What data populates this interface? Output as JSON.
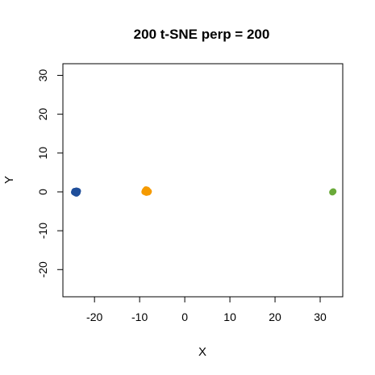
{
  "chart_data": {
    "type": "scatter",
    "title": "200 t-SNE perp = 200",
    "xlabel": "X",
    "ylabel": "Y",
    "xlim": [
      -27,
      35
    ],
    "ylim": [
      -27,
      33
    ],
    "xticks": [
      -20,
      -10,
      0,
      10,
      20,
      30
    ],
    "yticks": [
      -20,
      -10,
      0,
      10,
      20,
      30
    ],
    "grid": false,
    "series": [
      {
        "color": "#1f4e9a",
        "points": [
          [
            -24.3,
            0.0
          ],
          [
            -24.0,
            0.3
          ],
          [
            -23.8,
            -0.2
          ],
          [
            -24.2,
            -0.3
          ],
          [
            -23.9,
            0.1
          ],
          [
            -24.4,
            0.2
          ],
          [
            -24.1,
            -0.1
          ],
          [
            -23.7,
            0.2
          ],
          [
            -24.5,
            -0.1
          ],
          [
            -24.0,
            -0.4
          ]
        ]
      },
      {
        "color": "#f59a00",
        "points": [
          [
            -8.7,
            0.2
          ],
          [
            -8.3,
            0.5
          ],
          [
            -8.0,
            0.1
          ],
          [
            -8.5,
            -0.2
          ],
          [
            -8.9,
            0.0
          ],
          [
            -8.2,
            0.3
          ],
          [
            -8.6,
            0.6
          ],
          [
            -8.1,
            -0.1
          ],
          [
            -8.4,
            0.4
          ],
          [
            -8.8,
            0.3
          ]
        ]
      },
      {
        "color": "#6aaa3a",
        "points": [
          [
            32.8,
            0.0
          ],
          [
            32.9,
            0.1
          ],
          [
            32.7,
            -0.1
          ]
        ]
      }
    ]
  }
}
